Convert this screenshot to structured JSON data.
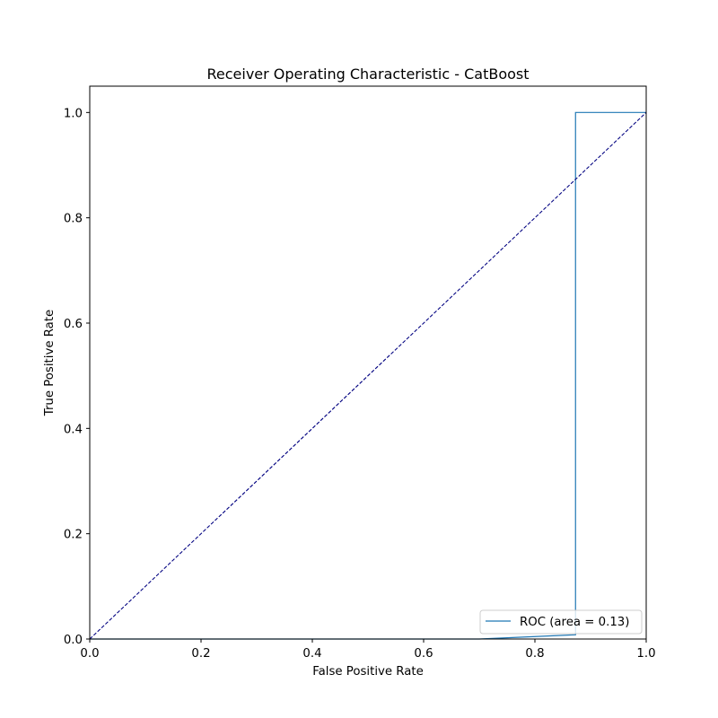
{
  "chart_data": {
    "type": "line",
    "title": "Receiver Operating Characteristic - CatBoost",
    "xlabel": "False Positive Rate",
    "ylabel": "True Positive Rate",
    "xlim": [
      0.0,
      1.0
    ],
    "ylim": [
      0.0,
      1.05
    ],
    "xticks": [
      0.0,
      0.2,
      0.4,
      0.6,
      0.8,
      1.0
    ],
    "yticks": [
      0.0,
      0.2,
      0.4,
      0.6,
      0.8,
      1.0
    ],
    "xtick_labels": [
      "0.0",
      "0.2",
      "0.4",
      "0.6",
      "0.8",
      "1.0"
    ],
    "ytick_labels": [
      "0.0",
      "0.2",
      "0.4",
      "0.6",
      "0.8",
      "1.0"
    ],
    "grid": false,
    "legend_position": "lower-right",
    "series": [
      {
        "name": "ROC (area = 0.13)",
        "color": "#1f77b4",
        "style": "solid",
        "x": [
          0.0,
          0.7,
          0.873,
          0.873,
          1.0
        ],
        "y": [
          0.0,
          0.0,
          0.008,
          1.0,
          1.0
        ]
      },
      {
        "color": "#000080",
        "style": "dashed",
        "x": [
          0.0,
          1.0
        ],
        "y": [
          0.0,
          1.0
        ]
      }
    ]
  }
}
